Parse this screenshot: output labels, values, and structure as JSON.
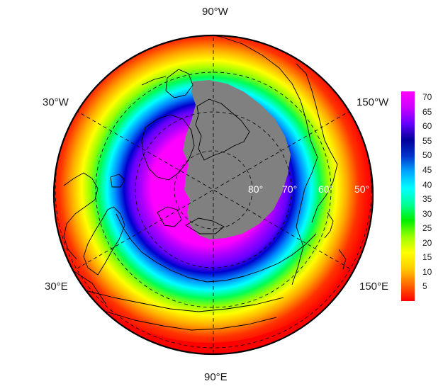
{
  "longitude_labels": {
    "top": "90°W",
    "upper_left": "30°W",
    "upper_right": "150°W",
    "lower_left": "30°E",
    "lower_right": "150°E",
    "bottom": "90°E"
  },
  "latitude_labels": [
    "80°",
    "70°",
    "60°",
    "50°"
  ],
  "colorbar": {
    "min": 0,
    "max": 72,
    "ticks": [
      "5",
      "10",
      "15",
      "20",
      "25",
      "30",
      "35",
      "40",
      "45",
      "50",
      "55",
      "60",
      "65",
      "70"
    ],
    "colors": [
      "#ff0000",
      "#ff6600",
      "#ffcc00",
      "#ffff00",
      "#99ff00",
      "#00ee00",
      "#00ff99",
      "#00ffff",
      "#00aaff",
      "#0033cc",
      "#000099",
      "#6600ff",
      "#cc00ff",
      "#ff00ff"
    ]
  },
  "map": {
    "projection": "north polar stereographic",
    "missing_color": "#808080",
    "land_outline_color": "#000000",
    "graticule": "dashed"
  }
}
